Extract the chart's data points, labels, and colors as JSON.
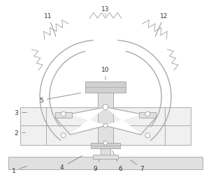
{
  "bg_color": "#ffffff",
  "lc": "#aaaaaa",
  "lc_dark": "#888888",
  "fc_light": "#f0f0f0",
  "fc_mid": "#e0e0e0",
  "fc_dark": "#d0d0d0",
  "figsize": [
    3.02,
    2.55
  ],
  "dpi": 100
}
